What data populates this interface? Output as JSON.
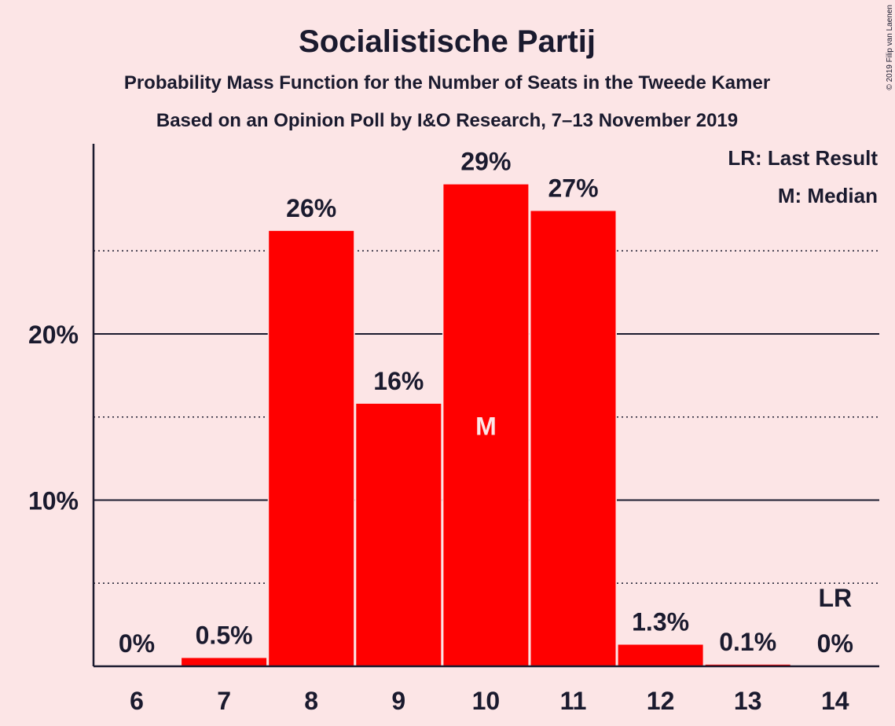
{
  "colors": {
    "background": "#fce5e6",
    "bar": "#ff0000",
    "text": "#1a1a2e",
    "median_label": "#fce5e6"
  },
  "copyright": "© 2019 Filip van Laenen",
  "chart_data": {
    "type": "bar",
    "title": "Socialistische Partij",
    "subtitle": [
      "Probability Mass Function for the Number of Seats in the Tweede Kamer",
      "Based on an Opinion Poll by I&O Research, 7–13 November 2019"
    ],
    "xlabel": "",
    "ylabel": "",
    "categories": [
      "6",
      "7",
      "8",
      "9",
      "10",
      "11",
      "12",
      "13",
      "14"
    ],
    "values": [
      0,
      0.5,
      26.2,
      15.8,
      29.0,
      27.4,
      1.3,
      0.1,
      0
    ],
    "value_labels": [
      "0%",
      "0.5%",
      "26%",
      "16%",
      "29%",
      "27%",
      "1.3%",
      "0.1%",
      "0%"
    ],
    "ylim": [
      0,
      31.5
    ],
    "y_ticks": [
      {
        "value": 10,
        "label": "10%"
      },
      {
        "value": 20,
        "label": "20%"
      }
    ],
    "y_minor_gridlines": [
      5,
      15,
      25
    ],
    "grid": true,
    "legend_position": "top-right",
    "legend": [
      "LR: Last Result",
      "M: Median"
    ],
    "markers": [
      {
        "category": "10",
        "text": "M",
        "placement": "inside-bar"
      },
      {
        "category": "14",
        "text": "LR",
        "placement": "above-label"
      }
    ]
  }
}
